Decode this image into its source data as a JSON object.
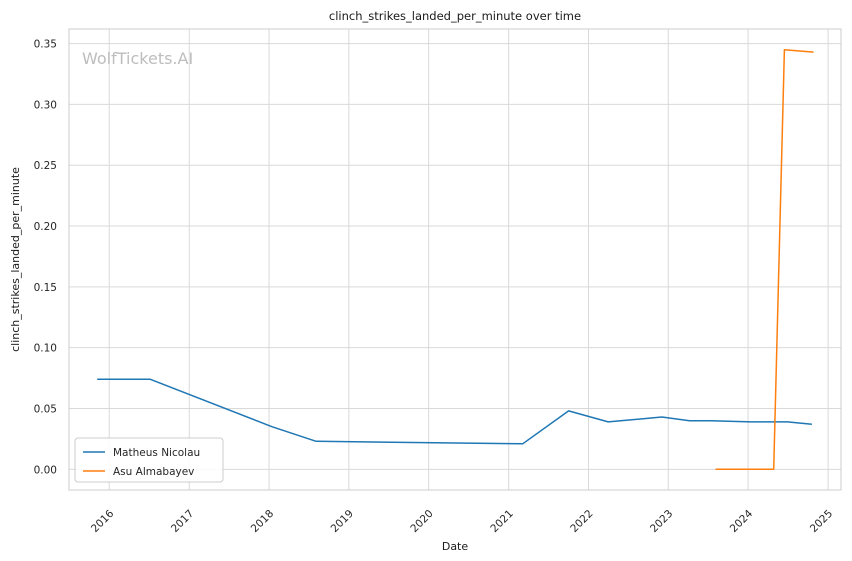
{
  "chart_data": {
    "type": "line",
    "title": "clinch_strikes_landed_per_minute over time",
    "xlabel": "Date",
    "ylabel": "clinch_strikes_landed_per_minute",
    "watermark": "WolfTickets.AI",
    "xlim": [
      "2015-07-01",
      "2025-03-01"
    ],
    "ylim": [
      -0.017,
      0.362
    ],
    "x_ticks": [
      {
        "date": "2016-01-01",
        "label": "2016"
      },
      {
        "date": "2017-01-01",
        "label": "2017"
      },
      {
        "date": "2018-01-01",
        "label": "2018"
      },
      {
        "date": "2019-01-01",
        "label": "2019"
      },
      {
        "date": "2020-01-01",
        "label": "2020"
      },
      {
        "date": "2021-01-01",
        "label": "2021"
      },
      {
        "date": "2022-01-01",
        "label": "2022"
      },
      {
        "date": "2023-01-01",
        "label": "2023"
      },
      {
        "date": "2024-01-01",
        "label": "2024"
      },
      {
        "date": "2025-01-01",
        "label": "2025"
      }
    ],
    "y_ticks": [
      {
        "value": 0.0,
        "label": "0.00"
      },
      {
        "value": 0.05,
        "label": "0.05"
      },
      {
        "value": 0.1,
        "label": "0.10"
      },
      {
        "value": 0.15,
        "label": "0.15"
      },
      {
        "value": 0.2,
        "label": "0.20"
      },
      {
        "value": 0.25,
        "label": "0.25"
      },
      {
        "value": 0.3,
        "label": "0.30"
      },
      {
        "value": 0.35,
        "label": "0.35"
      }
    ],
    "grid": true,
    "legend_position": "lower-left",
    "series": [
      {
        "name": "Matheus Nicolau",
        "color": "#1f77b4",
        "points": [
          {
            "x": "2015-11-07",
            "y": 0.074
          },
          {
            "x": "2016-07-07",
            "y": 0.074
          },
          {
            "x": "2018-01-14",
            "y": 0.035
          },
          {
            "x": "2018-08-04",
            "y": 0.023
          },
          {
            "x": "2021-03-06",
            "y": 0.021
          },
          {
            "x": "2021-10-02",
            "y": 0.048
          },
          {
            "x": "2022-04-01",
            "y": 0.039
          },
          {
            "x": "2022-12-03",
            "y": 0.043
          },
          {
            "x": "2023-04-08",
            "y": 0.04
          },
          {
            "x": "2023-07-15",
            "y": 0.04
          },
          {
            "x": "2024-01-13",
            "y": 0.039
          },
          {
            "x": "2024-06-29",
            "y": 0.039
          },
          {
            "x": "2024-10-19",
            "y": 0.037
          }
        ]
      },
      {
        "name": "Asu Almabayev",
        "color": "#ff7f0e",
        "points": [
          {
            "x": "2023-08-05",
            "y": 0.0
          },
          {
            "x": "2024-04-27",
            "y": 0.0
          },
          {
            "x": "2024-06-15",
            "y": 0.345
          },
          {
            "x": "2024-10-26",
            "y": 0.343
          }
        ]
      }
    ]
  }
}
